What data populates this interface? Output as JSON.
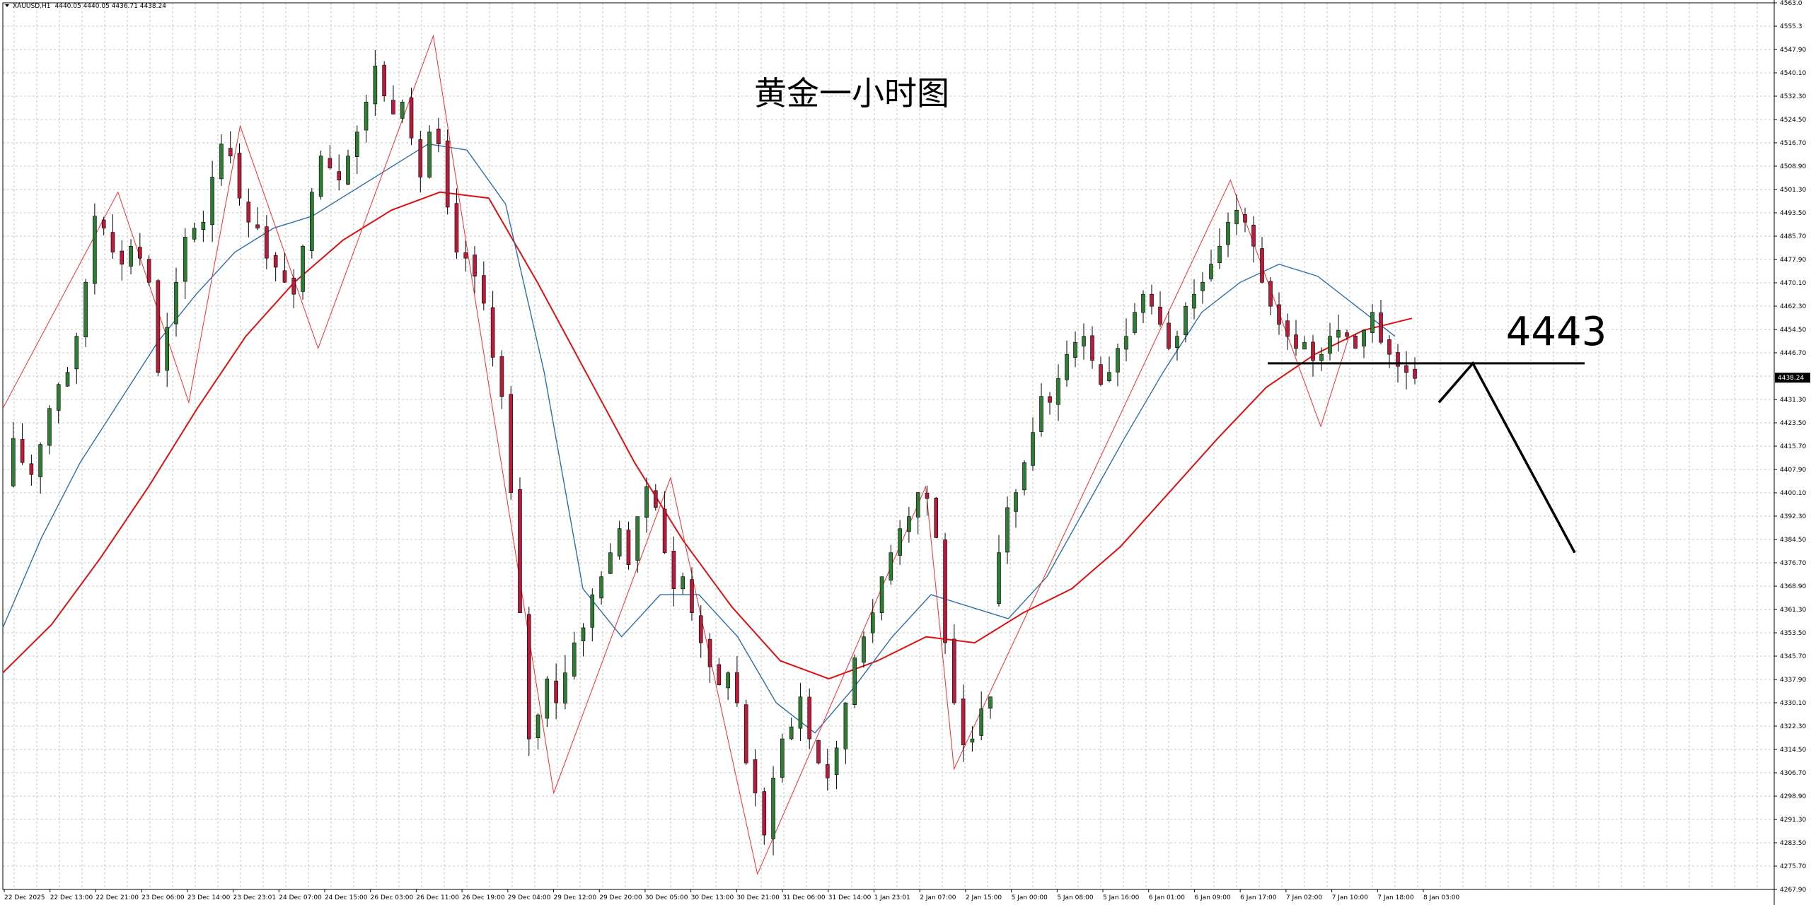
{
  "header": {
    "symbol": "XAUUSD,H1",
    "ohlc": "4440.05 4440.05 4436.71 4438.24"
  },
  "chart_data": {
    "type": "candlestick",
    "title": "黄金一小时图",
    "annotation_level": "4443",
    "current_price_tag": "4438.24",
    "ylim": [
      4267.9,
      4563.0
    ],
    "price_labels": [
      "4563.0",
      "4555.3",
      "4547.90",
      "4540.10",
      "4532.30",
      "4524.50",
      "4516.70",
      "4508.90",
      "4501.30",
      "4493.50",
      "4485.70",
      "4477.90",
      "4470.10",
      "4462.30",
      "4454.50",
      "4446.70",
      "4438.24",
      "4431.30",
      "4423.50",
      "4415.70",
      "4407.90",
      "4400.10",
      "4392.30",
      "4384.50",
      "4376.70",
      "4368.90",
      "4361.30",
      "4353.50",
      "4345.70",
      "4337.90",
      "4330.10",
      "4322.30",
      "4314.50",
      "4306.70",
      "4298.90",
      "4291.30",
      "4283.50",
      "4275.70",
      "4267.90"
    ],
    "time_labels": [
      "22 Dec 2025",
      "22 Dec 13:00",
      "22 Dec 21:00",
      "23 Dec 06:00",
      "23 Dec 14:00",
      "23 Dec 23:01",
      "24 Dec 07:00",
      "24 Dec 15:00",
      "26 Dec 03:00",
      "26 Dec 11:00",
      "26 Dec 19:00",
      "29 Dec 04:00",
      "29 Dec 12:00",
      "29 Dec 20:00",
      "30 Dec 05:00",
      "30 Dec 13:00",
      "30 Dec 21:00",
      "31 Dec 06:00",
      "31 Dec 14:00",
      "1 Jan 23:01",
      "2 Jan 07:00",
      "2 Jan 15:00",
      "5 Jan 00:00",
      "5 Jan 08:00",
      "5 Jan 16:00",
      "6 Jan 01:00",
      "6 Jan 09:00",
      "6 Jan 17:00",
      "7 Jan 02:00",
      "7 Jan 10:00",
      "7 Jan 18:00",
      "8 Jan 03:00"
    ],
    "close_path": [
      4401,
      4418,
      4410,
      4406,
      4416,
      4428,
      4436,
      4440,
      4452,
      4470,
      4492,
      4488,
      4480,
      4476,
      4482,
      4478,
      4470,
      4440,
      4455,
      4470,
      4485,
      4488,
      4490,
      4505,
      4516,
      4512,
      4498,
      4490,
      4488,
      4478,
      4475,
      4470,
      4466,
      4482,
      4500,
      4512,
      4508,
      4504,
      4512,
      4520,
      4530,
      4542,
      4532,
      4526,
      4530,
      4518,
      4505,
      4520,
      4516,
      4495,
      4480,
      4478,
      4472,
      4463,
      4445,
      4432,
      4400,
      4360,
      4318,
      4326,
      4338,
      4330,
      4340,
      4350,
      4355,
      4366,
      4372,
      4380,
      4388,
      4376,
      4392,
      4402,
      4395,
      4380,
      4368,
      4372,
      4360,
      4350,
      4342,
      4336,
      4340,
      4330,
      4310,
      4300,
      4286,
      4305,
      4318,
      4322,
      4332,
      4318,
      4310,
      4305,
      4315,
      4330,
      4345,
      4352,
      4360,
      4372,
      4380,
      4388,
      4392,
      4400,
      4398,
      4385,
      4350,
      4330,
      4316,
      4318,
      4328,
      4332
    ],
    "close_path_2": [
      4362,
      4380,
      4395,
      4400,
      4410,
      4420,
      4432,
      4430,
      4438,
      4446,
      4450,
      4452,
      4444,
      4436,
      4440,
      4448,
      4452,
      4460,
      4466,
      4462,
      4456,
      4448,
      4452,
      4462,
      4466,
      4470,
      4476,
      4482,
      4490,
      4494,
      4490,
      4482,
      4470,
      4462,
      4456,
      4452,
      4448,
      4450,
      4444,
      4446,
      4452,
      4454,
      4452,
      4448,
      4454,
      4460,
      4450,
      4446,
      4442,
      4440,
      4438
    ],
    "ma_fast_samples": [
      4355,
      4385,
      4410,
      4430,
      4450,
      4466,
      4480,
      4488,
      4492,
      4500,
      4508,
      4516,
      4514,
      4496,
      4440,
      4368,
      4352,
      4366,
      4366,
      4352,
      4330,
      4320,
      4335,
      4352,
      4366,
      4362,
      4358,
      4372,
      4395,
      4418,
      4440,
      4460,
      4470,
      4476,
      4472,
      4462,
      4452
    ],
    "ma_slow_samples": [
      4340,
      4356,
      4378,
      4402,
      4428,
      4452,
      4470,
      4484,
      4494,
      4500,
      4498,
      4470,
      4440,
      4410,
      4384,
      4362,
      4344,
      4338,
      4344,
      4352,
      4350,
      4360,
      4368,
      4382,
      4400,
      4418,
      4435,
      4446,
      4454,
      4458
    ],
    "zigzag_points": [
      [
        4428,
        0
      ],
      [
        4500,
        0.065
      ],
      [
        4430,
        0.105
      ],
      [
        4522,
        0.134
      ],
      [
        4448,
        0.178
      ],
      [
        4552,
        0.243
      ],
      [
        4300,
        0.311
      ],
      [
        4405,
        0.377
      ],
      [
        4273,
        0.426
      ],
      [
        4402,
        0.521
      ],
      [
        4308,
        0.537
      ],
      [
        4504,
        0.693
      ],
      [
        4422,
        0.744
      ],
      [
        4452,
        0.76
      ]
    ]
  }
}
